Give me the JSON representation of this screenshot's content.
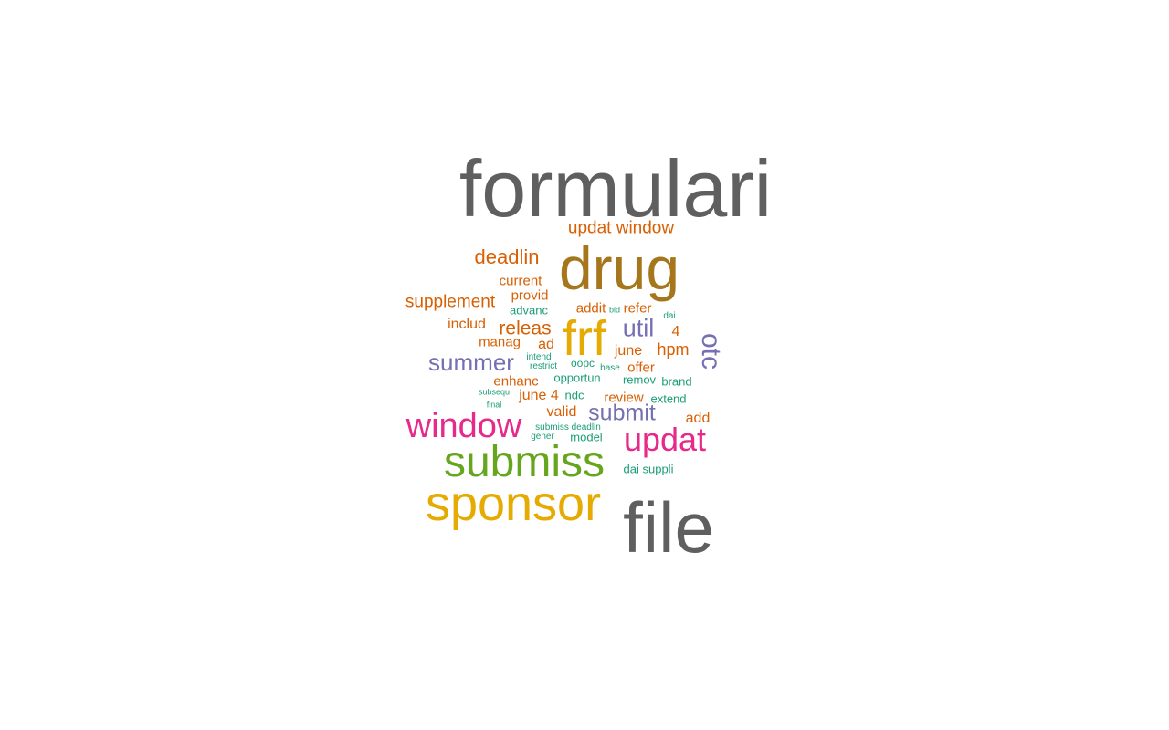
{
  "colors": {
    "gray": "#5f5f5f",
    "olive": "#a6761d",
    "gold": "#e6ab02",
    "green": "#66a61e",
    "magenta": "#e7298a",
    "purple": "#7570b3",
    "orange": "#d95f02",
    "teal": "#1b9e77"
  },
  "words": [
    {
      "text": "formulari",
      "color": "gray"
    },
    {
      "text": "drug",
      "color": "olive"
    },
    {
      "text": "file",
      "color": "gray"
    },
    {
      "text": "sponsor",
      "color": "gold"
    },
    {
      "text": "submiss",
      "color": "green"
    },
    {
      "text": "window",
      "color": "magenta"
    },
    {
      "text": "updat",
      "color": "magenta"
    },
    {
      "text": "frf",
      "color": "gold"
    },
    {
      "text": "otc",
      "color": "purple"
    },
    {
      "text": "updat window",
      "color": "orange"
    },
    {
      "text": "deadlin",
      "color": "orange"
    },
    {
      "text": "current",
      "color": "orange"
    },
    {
      "text": "supplement",
      "color": "orange"
    },
    {
      "text": "provid",
      "color": "orange"
    },
    {
      "text": "advanc",
      "color": "teal"
    },
    {
      "text": "addit",
      "color": "orange"
    },
    {
      "text": "bid",
      "color": "teal"
    },
    {
      "text": "refer",
      "color": "orange"
    },
    {
      "text": "dai",
      "color": "teal"
    },
    {
      "text": "includ",
      "color": "orange"
    },
    {
      "text": "releas",
      "color": "orange"
    },
    {
      "text": "util",
      "color": "purple"
    },
    {
      "text": "4",
      "color": "orange"
    },
    {
      "text": "manag",
      "color": "orange"
    },
    {
      "text": "ad",
      "color": "orange"
    },
    {
      "text": "june",
      "color": "orange"
    },
    {
      "text": "hpm",
      "color": "orange"
    },
    {
      "text": "summer",
      "color": "purple"
    },
    {
      "text": "intend",
      "color": "teal"
    },
    {
      "text": "restrict",
      "color": "teal"
    },
    {
      "text": "oopc",
      "color": "teal"
    },
    {
      "text": "base",
      "color": "teal"
    },
    {
      "text": "offer",
      "color": "orange"
    },
    {
      "text": "enhanc",
      "color": "orange"
    },
    {
      "text": "opportun",
      "color": "teal"
    },
    {
      "text": "remov",
      "color": "teal"
    },
    {
      "text": "brand",
      "color": "teal"
    },
    {
      "text": "subsequ",
      "color": "teal"
    },
    {
      "text": "june 4",
      "color": "orange"
    },
    {
      "text": "ndc",
      "color": "teal"
    },
    {
      "text": "review",
      "color": "orange"
    },
    {
      "text": "extend",
      "color": "teal"
    },
    {
      "text": "final",
      "color": "teal"
    },
    {
      "text": "valid",
      "color": "orange"
    },
    {
      "text": "submit",
      "color": "purple"
    },
    {
      "text": "add",
      "color": "orange"
    },
    {
      "text": "submiss deadlin",
      "color": "teal"
    },
    {
      "text": "gener",
      "color": "teal"
    },
    {
      "text": "model",
      "color": "teal"
    },
    {
      "text": "dai suppli",
      "color": "teal"
    }
  ]
}
